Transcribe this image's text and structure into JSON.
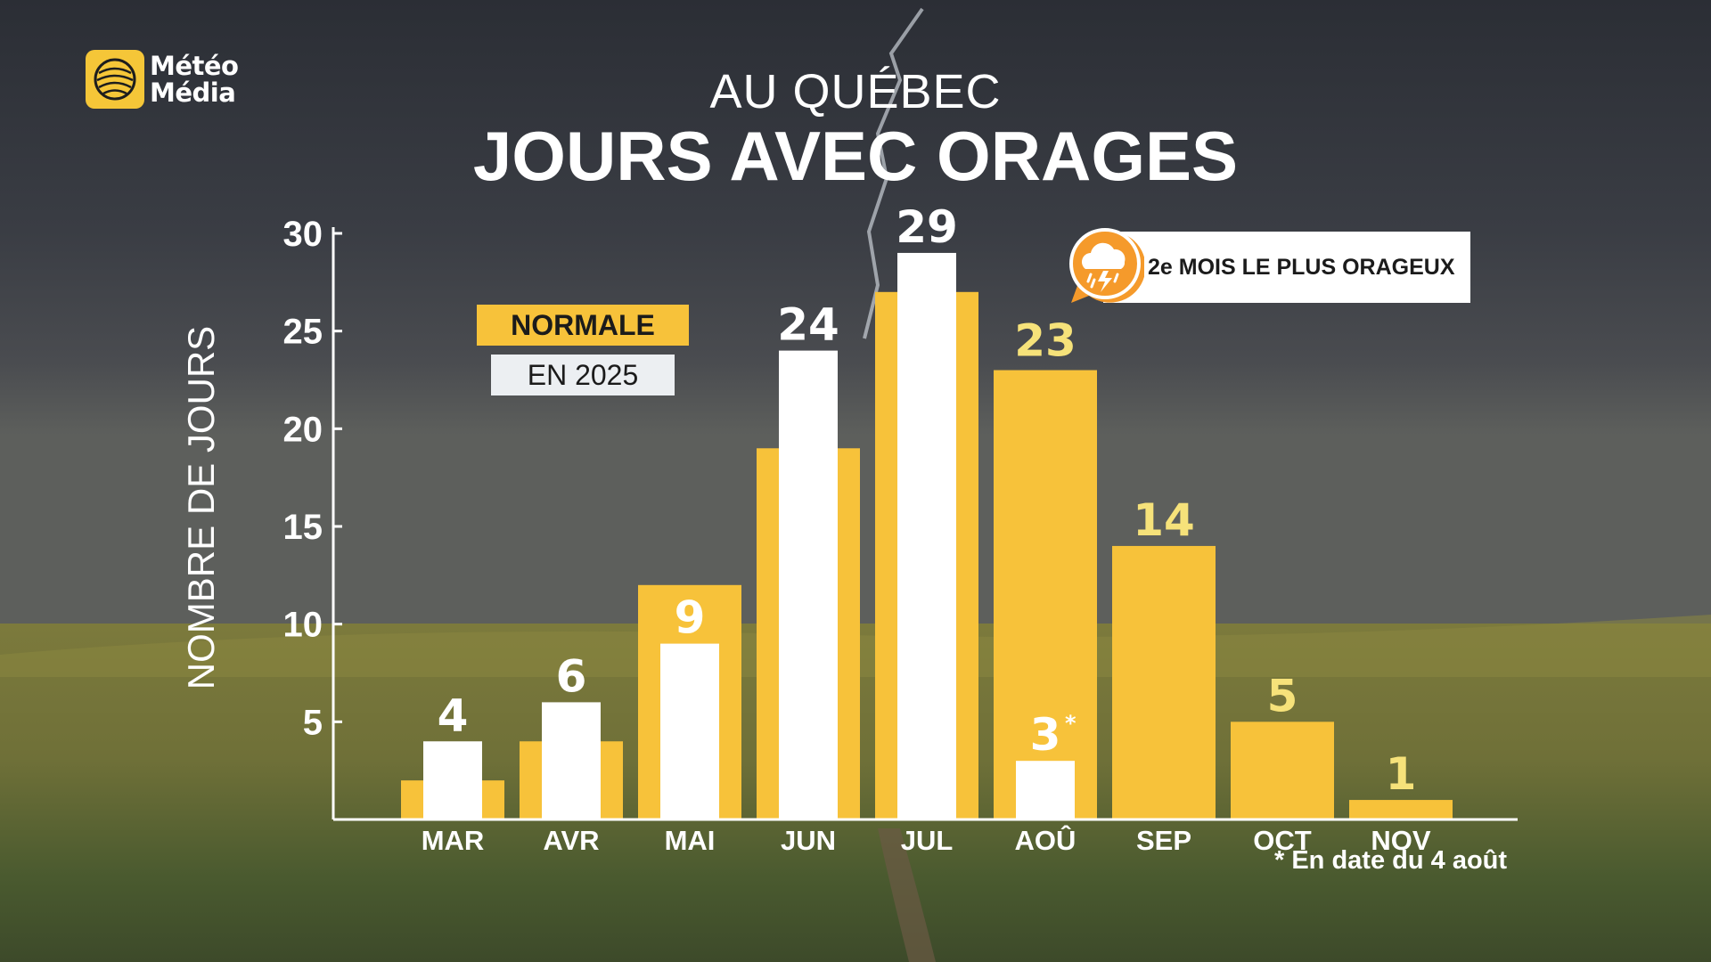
{
  "brand": {
    "line1": "Météo",
    "line2": "Média"
  },
  "subtitle": "AU QUÉBEC",
  "title": "JOURS AVEC ORAGES",
  "legend": {
    "normal": "NORMALE",
    "current": "EN 2025"
  },
  "callout": {
    "text": "2e MOIS LE PLUS ORAGEUX",
    "icon": "storm-cloud-icon"
  },
  "footnote": "* En date du 4 août",
  "colors": {
    "normal": "#f7c23a",
    "current": "#ffffff",
    "normal_label": "#f6e27a",
    "current_label": "#ffffff",
    "callout_orange": "#f59a2b"
  },
  "chart_data": {
    "type": "bar",
    "title": "JOURS AVEC ORAGES",
    "subtitle": "AU QUÉBEC",
    "ylabel": "NOMBRE DE JOURS",
    "xlabel": "",
    "ylim": [
      0,
      30
    ],
    "yticks": [
      5,
      10,
      15,
      20,
      25,
      30
    ],
    "categories": [
      "MAR",
      "AVR",
      "MAI",
      "JUN",
      "JUL",
      "AOÛ",
      "SEP",
      "OCT",
      "NOV"
    ],
    "series": [
      {
        "name": "NORMALE",
        "values": [
          2,
          4,
          12,
          19,
          27,
          23,
          14,
          5,
          1
        ]
      },
      {
        "name": "EN 2025",
        "values": [
          4,
          6,
          9,
          24,
          29,
          3,
          null,
          null,
          null
        ]
      }
    ],
    "data_labels": [
      "4",
      "6",
      "9",
      "24",
      "29",
      "3",
      "14",
      "5",
      "1"
    ],
    "label_source": [
      "current",
      "current",
      "current",
      "current",
      "current",
      "current",
      "normal",
      "normal",
      "normal"
    ],
    "label_notes": [
      "",
      "",
      "",
      "",
      "",
      "*",
      "",
      "",
      ""
    ],
    "normal_label_months": [
      "AOÛ"
    ],
    "grid": false,
    "legend_position": "top-left"
  }
}
